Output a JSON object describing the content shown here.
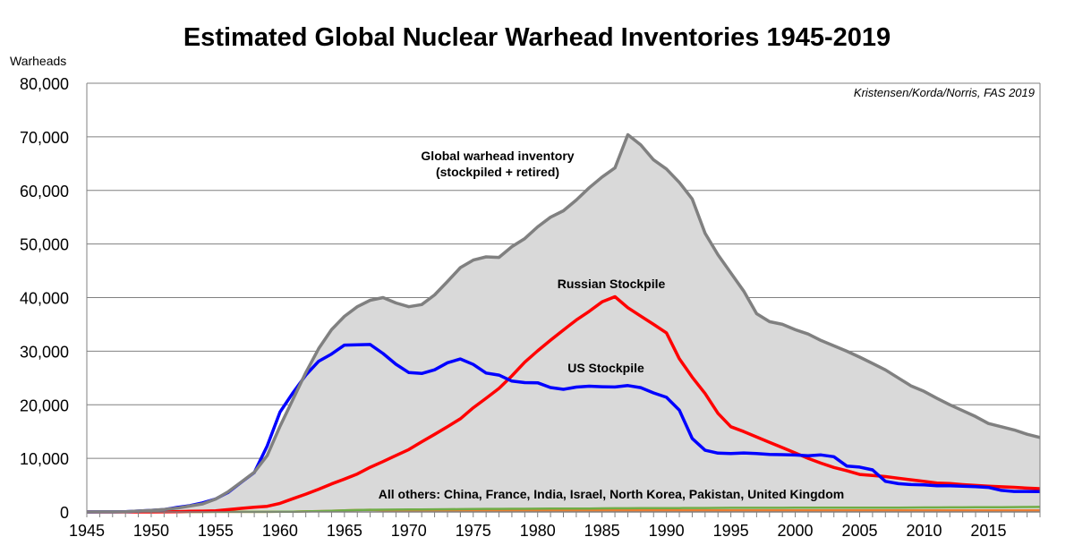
{
  "chart_data": {
    "type": "area",
    "title": "Estimated Global Nuclear Warhead Inventories 1945-2019",
    "ylabel": "Warheads",
    "xlabel": "",
    "source": "Kristensen/Korda/Norris, FAS 2019",
    "xlim": [
      1945,
      2019
    ],
    "ylim": [
      0,
      80000
    ],
    "yticks": [
      "0",
      "10,000",
      "20,000",
      "30,000",
      "40,000",
      "50,000",
      "60,000",
      "70,000",
      "80,000"
    ],
    "xticks": [
      "1945",
      "1950",
      "1955",
      "1960",
      "1965",
      "1970",
      "1975",
      "1980",
      "1985",
      "1990",
      "1995",
      "2000",
      "2005",
      "2010",
      "2015"
    ],
    "grid": true,
    "years": [
      1945,
      1946,
      1947,
      1948,
      1949,
      1950,
      1951,
      1952,
      1953,
      1954,
      1955,
      1956,
      1957,
      1958,
      1959,
      1960,
      1961,
      1962,
      1963,
      1964,
      1965,
      1966,
      1967,
      1968,
      1969,
      1970,
      1971,
      1972,
      1973,
      1974,
      1975,
      1976,
      1977,
      1978,
      1979,
      1980,
      1981,
      1982,
      1983,
      1984,
      1985,
      1986,
      1987,
      1988,
      1989,
      1990,
      1991,
      1992,
      1993,
      1994,
      1995,
      1996,
      1997,
      1998,
      1999,
      2000,
      2001,
      2002,
      2003,
      2004,
      2005,
      2006,
      2007,
      2008,
      2009,
      2010,
      2011,
      2012,
      2013,
      2014,
      2015,
      2016,
      2017,
      2018,
      2019
    ],
    "series": [
      {
        "name": "Global warhead inventory (stockpiled + retired)",
        "label_line1": "Global warhead inventory",
        "label_line2": "(stockpiled + retired)",
        "color": "#808080",
        "fill": "#d9d9d9",
        "values": [
          2,
          9,
          13,
          50,
          170,
          304,
          450,
          700,
          1100,
          1500,
          2400,
          3800,
          5600,
          7400,
          10500,
          16000,
          21000,
          26000,
          30500,
          34000,
          36500,
          38300,
          39500,
          40000,
          39000,
          38300,
          38700,
          40500,
          43000,
          45600,
          47000,
          47600,
          47500,
          49500,
          51000,
          53200,
          55000,
          56200,
          58200,
          60500,
          62500,
          64200,
          70400,
          68500,
          65700,
          64000,
          61500,
          58400,
          52000,
          48000,
          44600,
          41200,
          37000,
          35500,
          35000,
          34000,
          33200,
          32000,
          31000,
          30000,
          28900,
          27700,
          26500,
          25000,
          23500,
          22500,
          21200,
          20000,
          18900,
          17800,
          16500,
          15900,
          15300,
          14500,
          13900
        ]
      },
      {
        "name": "Russian Stockpile",
        "color": "#ff0000",
        "values": [
          0,
          0,
          0,
          0,
          1,
          5,
          25,
          50,
          120,
          150,
          200,
          426,
          660,
          869,
          1060,
          1605,
          2471,
          3322,
          4238,
          5221,
          6129,
          7089,
          8339,
          9399,
          10538,
          11643,
          13092,
          14478,
          15915,
          17385,
          19443,
          21205,
          23044,
          25393,
          27935,
          30062,
          32049,
          33952,
          35804,
          37431,
          39197,
          40159,
          38107,
          36538,
          35000,
          33417,
          28595,
          25155,
          22101,
          18399,
          15900,
          15000,
          14000,
          13000,
          12000,
          11000,
          10000,
          9100,
          8300,
          7700,
          7000,
          6800,
          6600,
          6300,
          6000,
          5700,
          5400,
          5300,
          5100,
          4950,
          4800,
          4700,
          4600,
          4450,
          4350
        ]
      },
      {
        "name": "US Stockpile",
        "color": "#0000ff",
        "values": [
          2,
          9,
          13,
          50,
          170,
          299,
          438,
          841,
          1169,
          1703,
          2422,
          3692,
          5543,
          7345,
          12298,
          18638,
          22229,
          25540,
          28133,
          29463,
          31139,
          31175,
          31255,
          29561,
          27552,
          26008,
          25830,
          26516,
          27835,
          28537,
          27519,
          25914,
          25542,
          24418,
          24138,
          24104,
          23208,
          22886,
          23305,
          23459,
          23368,
          23317,
          23575,
          23205,
          22217,
          21392,
          19008,
          13708,
          11511,
          10979,
          10904,
          11011,
          10903,
          10732,
          10685,
          10615,
          10491,
          10640,
          10300,
          8570,
          8360,
          7853,
          5709,
          5273,
          5113,
          5066,
          4897,
          4881,
          4804,
          4717,
          4571,
          4018,
          3822,
          3822,
          3800
        ]
      },
      {
        "name": "All others: China, France, India, Israel, North Korea, Pakistan, United Kingdom",
        "color": "#70ad47",
        "values": [
          0,
          0,
          0,
          0,
          0,
          0,
          0,
          0,
          1,
          5,
          10,
          15,
          20,
          22,
          25,
          30,
          50,
          100,
          150,
          200,
          300,
          350,
          400,
          420,
          430,
          450,
          470,
          480,
          500,
          520,
          550,
          560,
          570,
          580,
          590,
          600,
          610,
          615,
          620,
          640,
          660,
          680,
          690,
          700,
          700,
          710,
          720,
          730,
          740,
          750,
          760,
          760,
          760,
          760,
          770,
          780,
          780,
          780,
          780,
          780,
          780,
          790,
          800,
          810,
          820,
          830,
          840,
          850,
          860,
          870,
          880,
          890,
          900,
          920,
          940
        ]
      },
      {
        "name": "",
        "color": "#ed7d31",
        "values": [
          0,
          0,
          0,
          0,
          0,
          0,
          0,
          0,
          1,
          5,
          10,
          15,
          20,
          22,
          25,
          30,
          50,
          100,
          150,
          200,
          300,
          350,
          400,
          300,
          280,
          280,
          280,
          300,
          300,
          300,
          300,
          300,
          300,
          300,
          300,
          300,
          300,
          300,
          300,
          300,
          300,
          300,
          300,
          300,
          300,
          300,
          300,
          300,
          300,
          300,
          300,
          300,
          300,
          300,
          300,
          300,
          300,
          300,
          300,
          300,
          300,
          300,
          300,
          300,
          300,
          300,
          300,
          300,
          300,
          300,
          300,
          300,
          300,
          300,
          300
        ]
      }
    ]
  }
}
